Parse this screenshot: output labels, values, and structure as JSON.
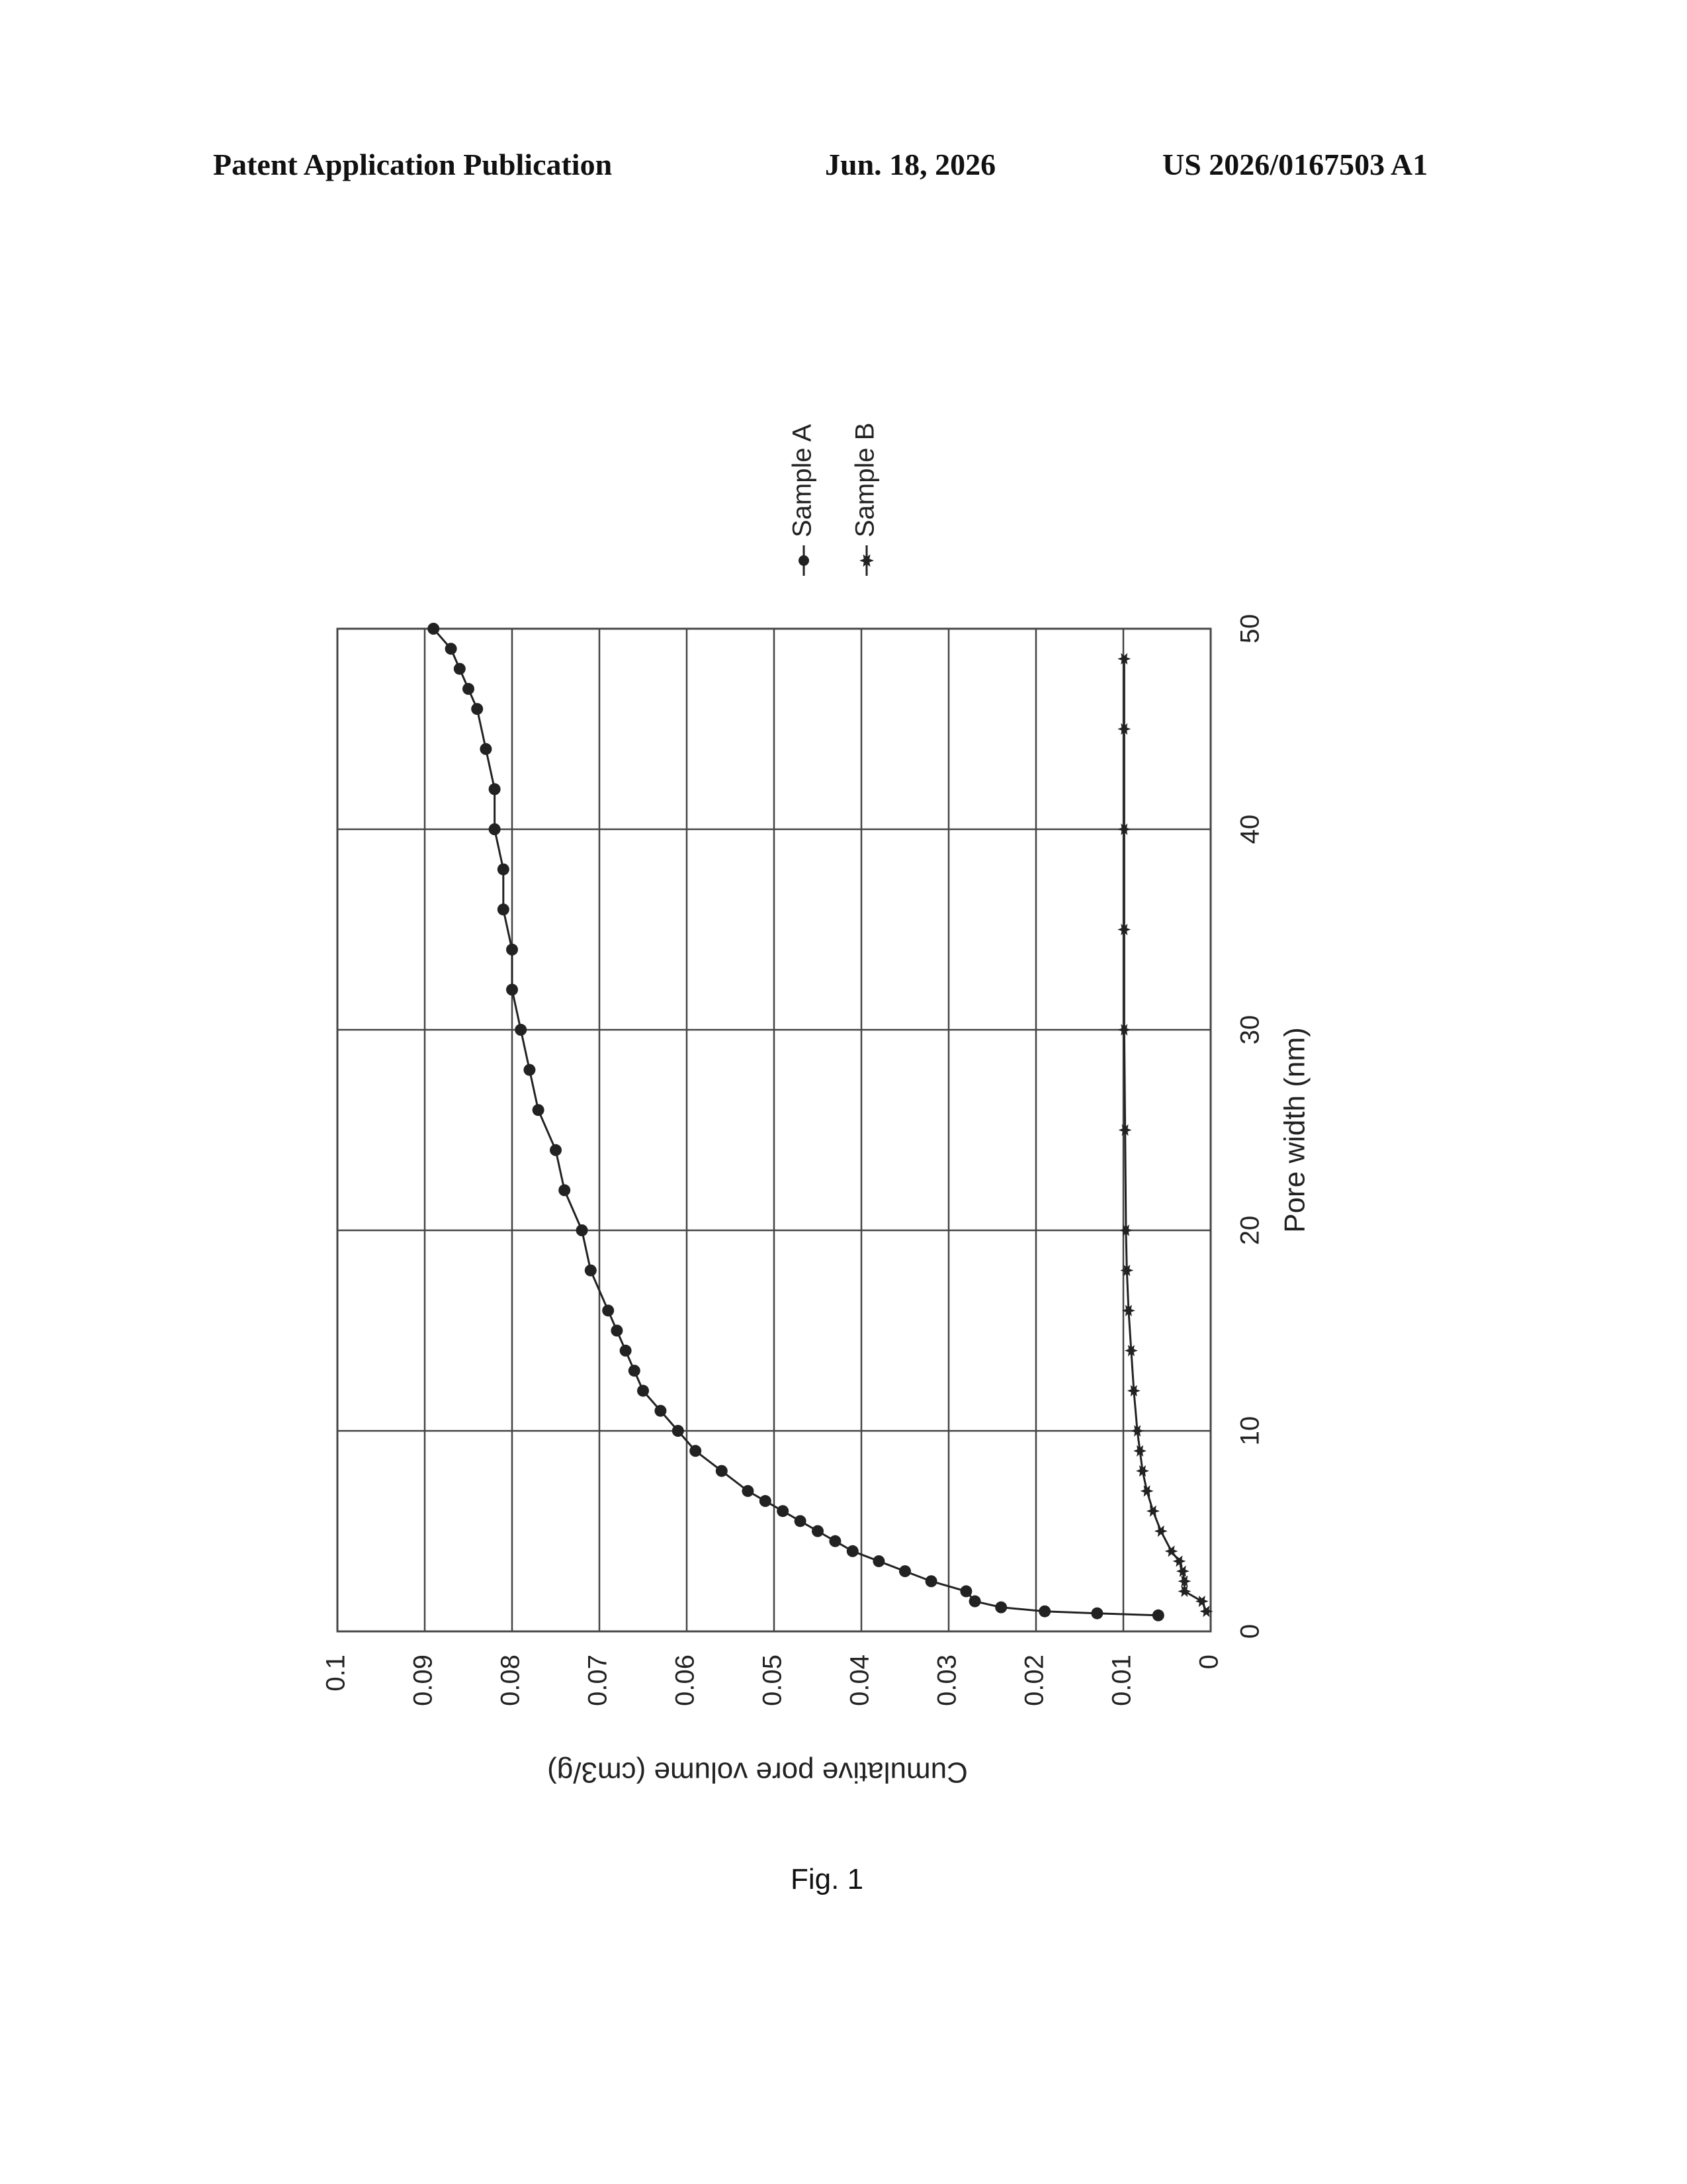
{
  "header": {
    "left": "Patent Application Publication",
    "center": "Jun. 18, 2026",
    "right": "US 2026/0167503 A1"
  },
  "figure_label": "Fig. 1",
  "chart_data": {
    "type": "line",
    "orientation": "rotated-90-clockwise",
    "xlabel": "Pore width (nm)",
    "ylabel": "Cumulative pore volume (cm3/g)",
    "xlim": [
      0,
      50
    ],
    "ylim": [
      0,
      0.1
    ],
    "x_ticks": [
      "0",
      "10",
      "20",
      "30",
      "40",
      "50"
    ],
    "y_ticks": [
      "0",
      "0.01",
      "0.02",
      "0.03",
      "0.04",
      "0.05",
      "0.06",
      "0.07",
      "0.08",
      "0.09",
      "0.1"
    ],
    "grid": true,
    "legend_position": "right",
    "series": [
      {
        "name": "Sample A",
        "marker": "dot",
        "x": [
          0.8,
          0.9,
          1.0,
          1.2,
          1.5,
          2.0,
          2.5,
          3.0,
          3.5,
          4.0,
          4.5,
          5.0,
          5.5,
          6.0,
          6.5,
          7.0,
          8.0,
          9.0,
          10.0,
          11.0,
          12.0,
          13.0,
          14.0,
          15.0,
          16.0,
          18.0,
          20.0,
          22.0,
          24.0,
          26.0,
          28.0,
          30.0,
          32.0,
          34.0,
          36.0,
          38.0,
          40.0,
          42.0,
          44.0,
          46.0,
          47.0,
          48.0,
          49.0,
          50.0
        ],
        "y": [
          0.006,
          0.013,
          0.019,
          0.024,
          0.027,
          0.028,
          0.032,
          0.035,
          0.038,
          0.041,
          0.043,
          0.045,
          0.047,
          0.049,
          0.051,
          0.053,
          0.056,
          0.059,
          0.061,
          0.063,
          0.065,
          0.066,
          0.067,
          0.068,
          0.069,
          0.071,
          0.072,
          0.074,
          0.075,
          0.077,
          0.078,
          0.079,
          0.08,
          0.08,
          0.081,
          0.081,
          0.082,
          0.082,
          0.083,
          0.084,
          0.085,
          0.086,
          0.087,
          0.089
        ]
      },
      {
        "name": "Sample B",
        "marker": "star",
        "x": [
          1.0,
          1.5,
          2.0,
          2.5,
          3.0,
          3.5,
          4.0,
          5.0,
          6.0,
          7.0,
          8.0,
          9.0,
          10.0,
          12.0,
          14.0,
          16.0,
          18.0,
          20.0,
          25.0,
          30.0,
          35.0,
          40.0,
          45.0,
          48.5
        ],
        "y": [
          0.0005,
          0.001,
          0.003,
          0.003,
          0.0032,
          0.0036,
          0.0045,
          0.0057,
          0.0066,
          0.0073,
          0.0078,
          0.0081,
          0.0084,
          0.0088,
          0.0091,
          0.0094,
          0.0096,
          0.0097,
          0.0098,
          0.0099,
          0.0099,
          0.0099,
          0.0099,
          0.0099
        ]
      }
    ]
  }
}
